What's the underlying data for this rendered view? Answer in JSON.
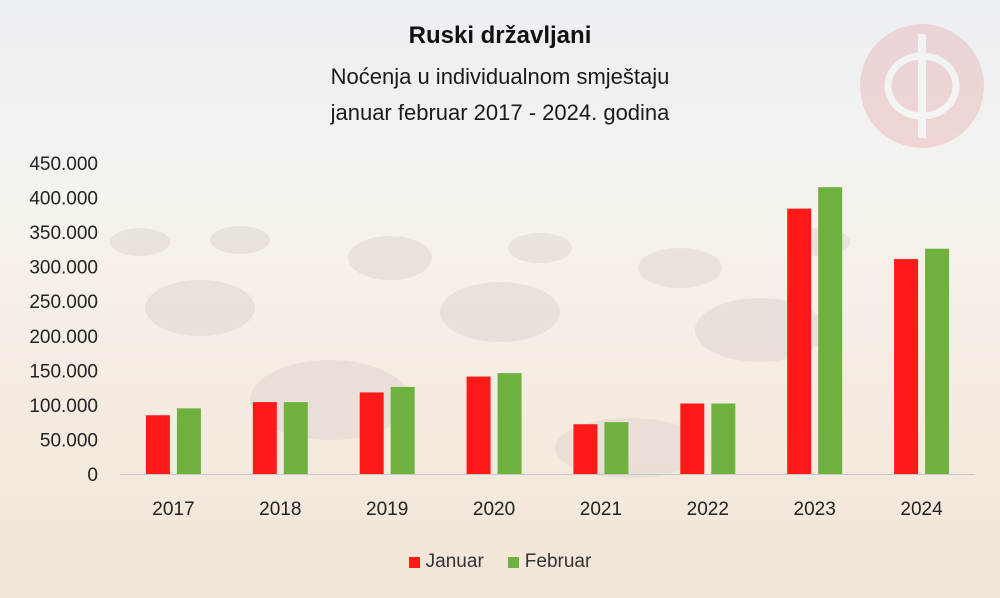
{
  "colors": {
    "januar": "#ff1a1a",
    "februar": "#6fb13f",
    "logo": "#e57373"
  },
  "logo_icon": "phi-seal-icon",
  "chart_data": {
    "type": "bar",
    "title": "Ruski državljani",
    "subtitle_lines": [
      "Noćenja u individualnom smještaju",
      "januar februar 2017 - 2024. godina"
    ],
    "categories": [
      "2017",
      "2018",
      "2019",
      "2020",
      "2021",
      "2022",
      "2023",
      "2024"
    ],
    "series": [
      {
        "name": "Januar",
        "values": [
          85000,
          104000,
          118000,
          141000,
          72000,
          102000,
          384000,
          311000
        ]
      },
      {
        "name": "Februar",
        "values": [
          95000,
          104000,
          126000,
          146000,
          75000,
          102000,
          415000,
          326000
        ]
      }
    ],
    "ylim": [
      0,
      450000
    ],
    "yticks": [
      0,
      50000,
      100000,
      150000,
      200000,
      250000,
      300000,
      350000,
      400000,
      450000
    ],
    "ytick_labels": [
      "0",
      "50.000",
      "100.000",
      "150.000",
      "200.000",
      "250.000",
      "300.000",
      "350.000",
      "400.000",
      "450.000"
    ],
    "grid": false,
    "legend_position": "bottom"
  }
}
